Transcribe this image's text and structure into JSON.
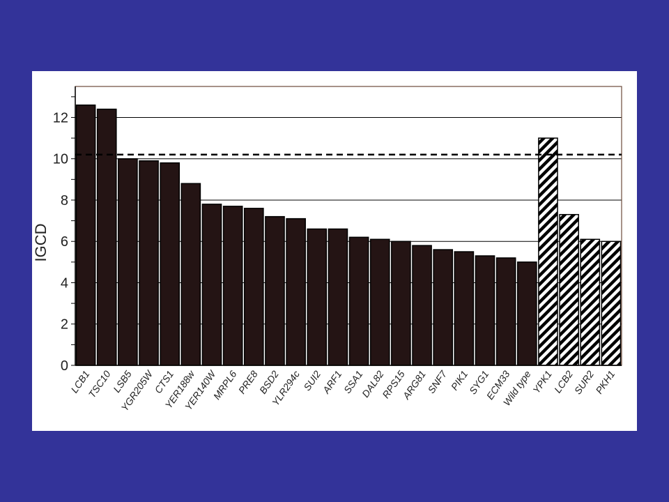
{
  "colors": {
    "background": "#333399",
    "panel": "#ffffff",
    "bar_fill": "#241414",
    "hatch": "#000000",
    "threshold_line": "#000000",
    "frame": "#6b4a3a"
  },
  "chart_data": {
    "type": "bar",
    "ylabel": "IGCD",
    "ylim": [
      0,
      13.5
    ],
    "yticks": [
      0,
      2,
      4,
      6,
      8,
      10,
      12
    ],
    "grid": true,
    "threshold": 10.2,
    "categories": [
      "LCB1",
      "TSC10",
      "LSB5",
      "YGR205W",
      "CTS1",
      "YER188w",
      "YER140W",
      "MRPL6",
      "PRE8",
      "BSD2",
      "YLR294c",
      "SUI2",
      "ARF1",
      "SSA1",
      "DAL82",
      "RPS15",
      "ARG81",
      "SNF7",
      "PIK1",
      "SYG1",
      "ECM33",
      "Wild type",
      "YPK1",
      "LCB2",
      "SUR2",
      "PKH1"
    ],
    "values": [
      12.6,
      12.4,
      10.0,
      9.9,
      9.8,
      8.8,
      7.8,
      7.7,
      7.6,
      7.2,
      7.1,
      6.6,
      6.6,
      6.2,
      6.1,
      6.0,
      5.8,
      5.6,
      5.5,
      5.3,
      5.2,
      5.0,
      11.0,
      7.3,
      6.1,
      6.0
    ],
    "hatched": [
      false,
      false,
      false,
      false,
      false,
      false,
      false,
      false,
      false,
      false,
      false,
      false,
      false,
      false,
      false,
      false,
      false,
      false,
      false,
      false,
      false,
      false,
      true,
      true,
      true,
      true
    ]
  }
}
